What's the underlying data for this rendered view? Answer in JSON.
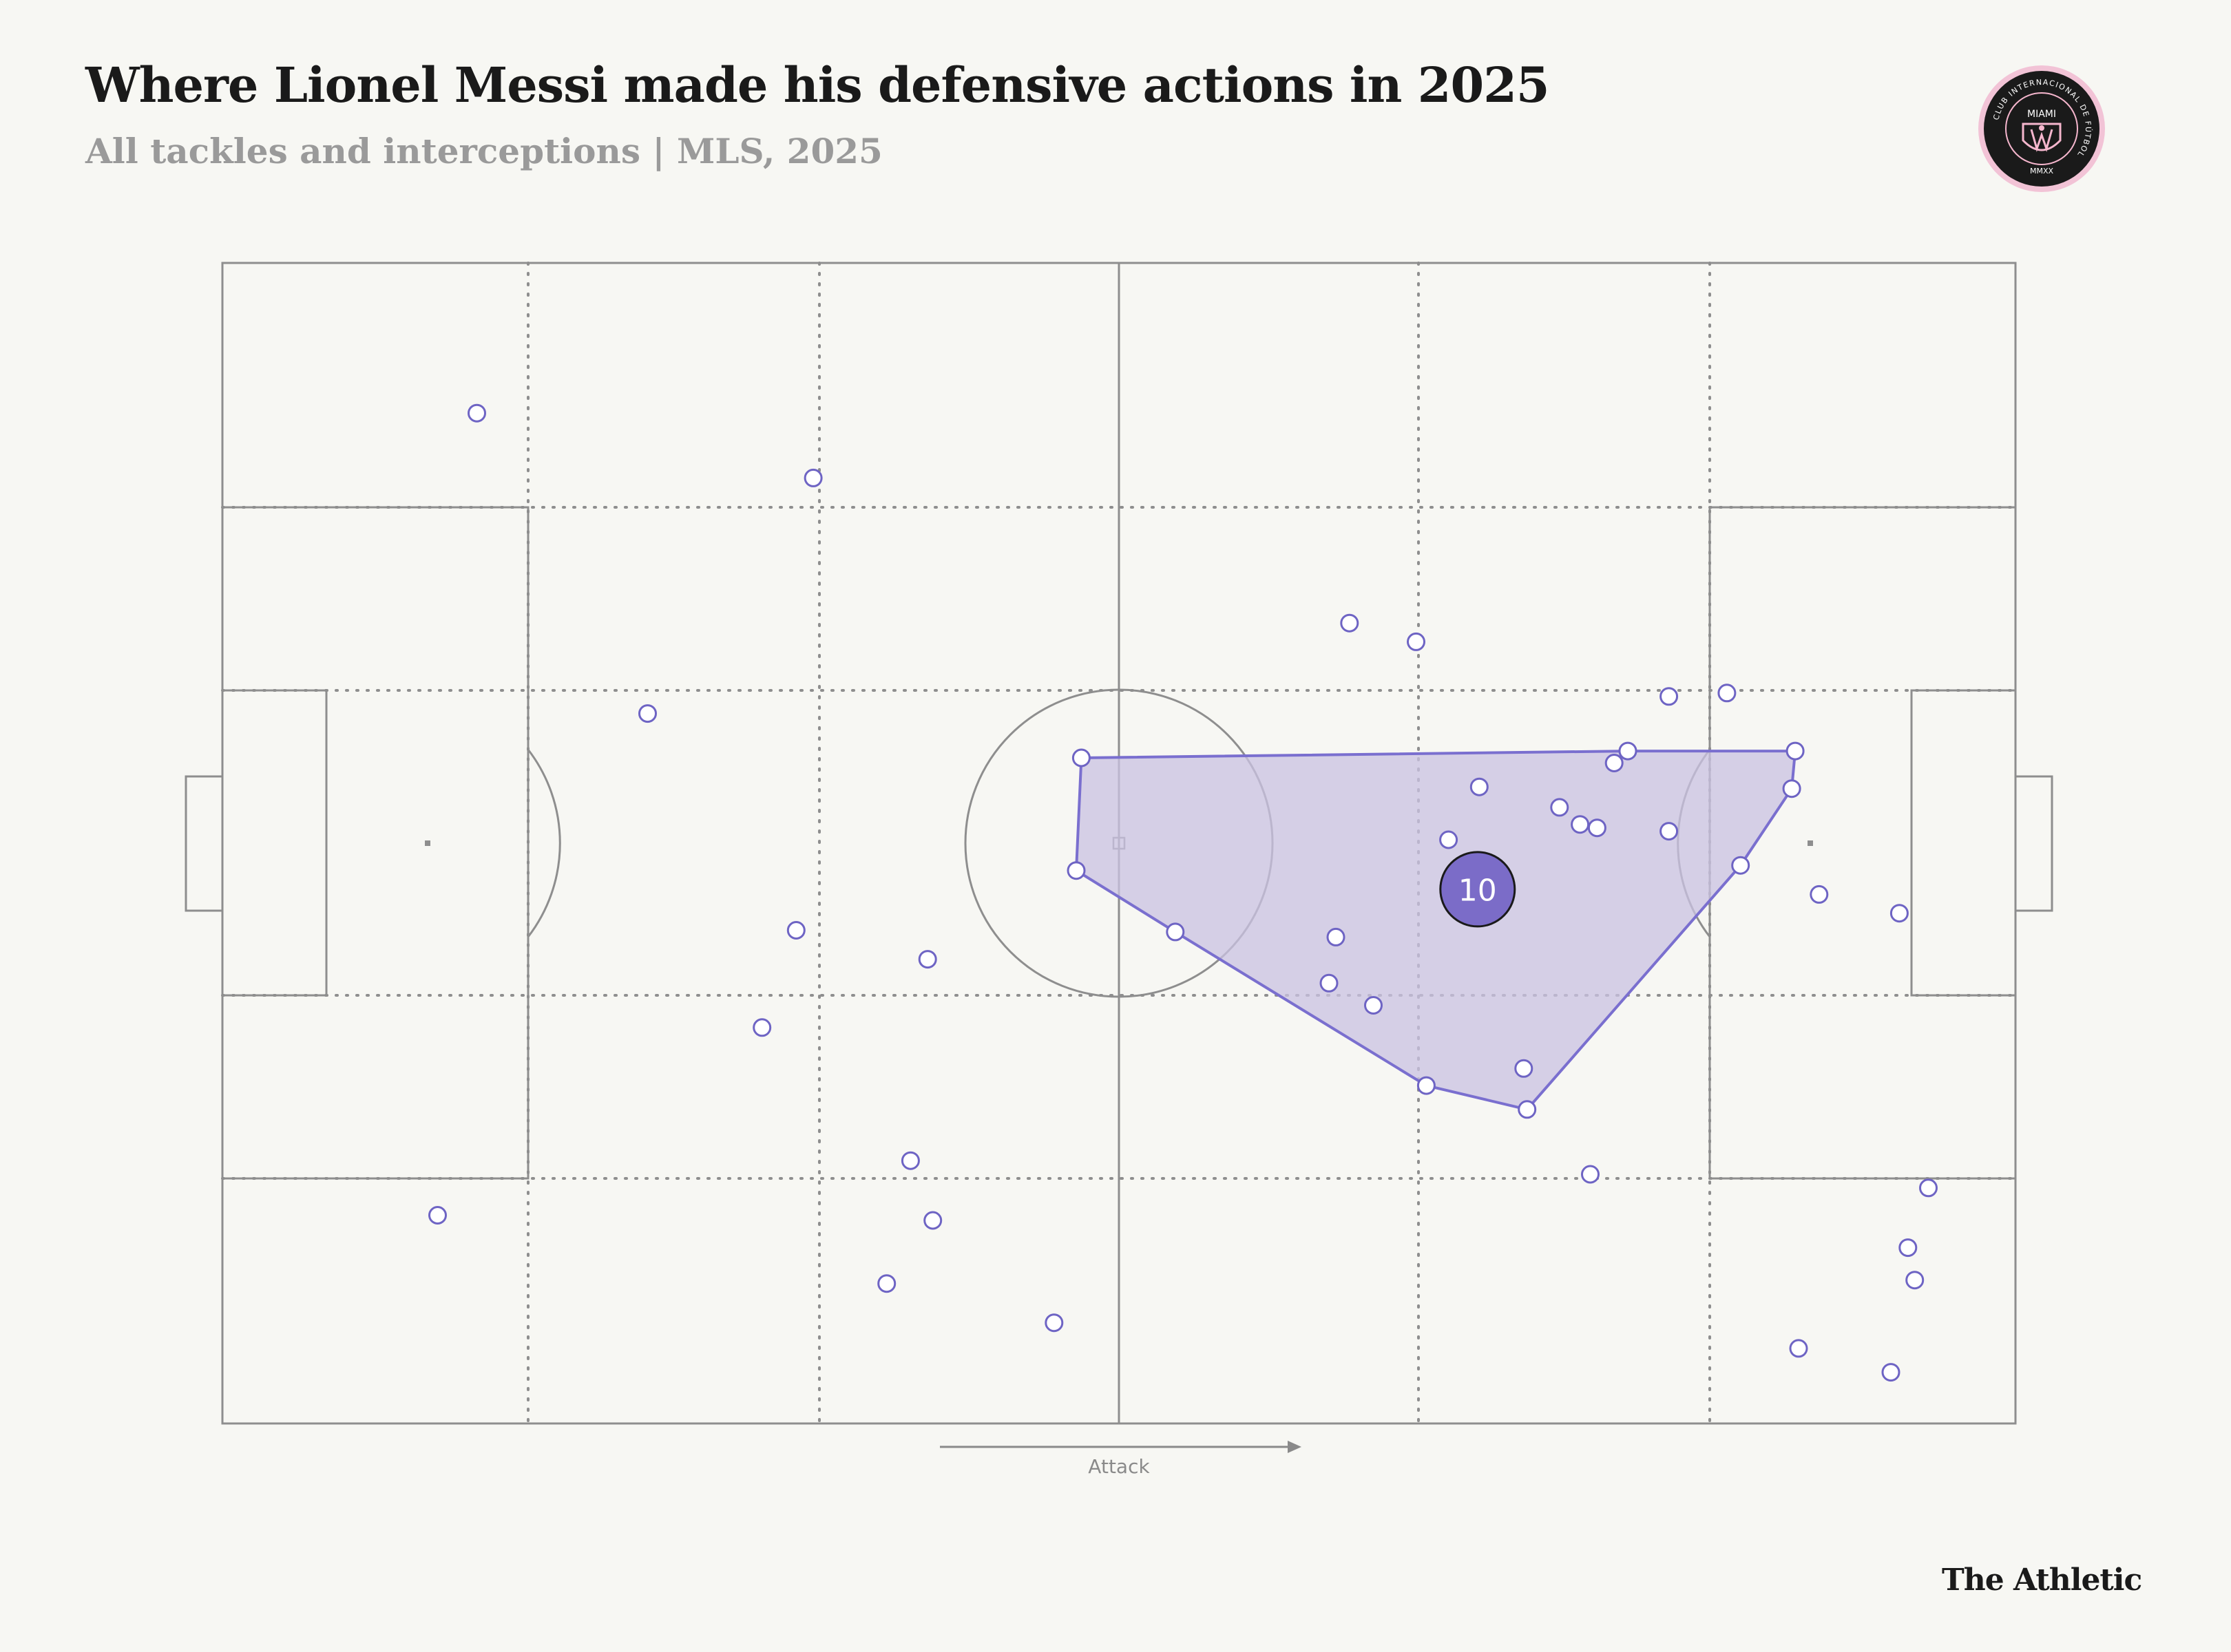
{
  "header": {
    "title": "Where Lionel Messi made his defensive actions in 2025",
    "subtitle": "All tackles and interceptions | MLS, 2025"
  },
  "crest": {
    "name": "MIAMI",
    "ring_text": "CLUB INTERNACIONAL DE FÚTBOL",
    "year": "MMXX",
    "colors": {
      "outer": "#e8b4c8",
      "inner": "#1a1a1a",
      "accent": "#f5b6cd"
    }
  },
  "footer": {
    "credit": "The Athletic"
  },
  "colors": {
    "background": "#f7f7f3",
    "pitch_lines": "#8e8e8e",
    "point_stroke": "#6e64c4",
    "hull_fill": "#c9c2e2",
    "hull_stroke": "#7a6fcf",
    "badge_fill": "#7b6cc8"
  },
  "chart_data": {
    "type": "scatter",
    "title": "Where Lionel Messi made his defensive actions in 2025",
    "subtitle": "All tackles and interceptions | MLS, 2025",
    "pitch": {
      "length": 105,
      "width": 68,
      "grid_zones": "6x5",
      "attack_direction": "left-to-right"
    },
    "direction_label": "Attack",
    "player_marker": {
      "label": "10",
      "x": 73.5,
      "y": 36.7
    },
    "points": [
      [
        14.9,
        8.8
      ],
      [
        34.6,
        12.6
      ],
      [
        66.0,
        21.1
      ],
      [
        69.9,
        22.2
      ],
      [
        24.9,
        26.4
      ],
      [
        84.7,
        25.4
      ],
      [
        88.1,
        25.2
      ],
      [
        50.3,
        29.0
      ],
      [
        82.3,
        28.6
      ],
      [
        92.1,
        28.6
      ],
      [
        81.5,
        29.3
      ],
      [
        73.6,
        30.7
      ],
      [
        78.3,
        31.9
      ],
      [
        79.5,
        32.9
      ],
      [
        80.5,
        33.1
      ],
      [
        91.9,
        30.8
      ],
      [
        84.7,
        33.3
      ],
      [
        71.8,
        33.8
      ],
      [
        50.0,
        35.6
      ],
      [
        88.9,
        35.3
      ],
      [
        93.5,
        37.0
      ],
      [
        98.2,
        38.1
      ],
      [
        33.6,
        39.1
      ],
      [
        55.8,
        39.2
      ],
      [
        65.2,
        39.5
      ],
      [
        41.3,
        40.8
      ],
      [
        64.8,
        42.2
      ],
      [
        67.4,
        43.5
      ],
      [
        31.6,
        44.8
      ],
      [
        76.2,
        47.2
      ],
      [
        70.5,
        48.2
      ],
      [
        76.4,
        49.6
      ],
      [
        40.3,
        52.6
      ],
      [
        80.1,
        53.4
      ],
      [
        99.9,
        54.2
      ],
      [
        12.6,
        55.8
      ],
      [
        41.6,
        56.1
      ],
      [
        98.7,
        57.7
      ],
      [
        99.1,
        59.6
      ],
      [
        38.9,
        59.8
      ],
      [
        48.7,
        62.1
      ],
      [
        92.3,
        63.6
      ],
      [
        97.7,
        65.0
      ]
    ],
    "hull": [
      [
        50.3,
        29.0
      ],
      [
        82.3,
        28.6
      ],
      [
        92.1,
        28.6
      ],
      [
        91.9,
        30.8
      ],
      [
        88.9,
        35.3
      ],
      [
        76.4,
        49.6
      ],
      [
        70.5,
        48.2
      ],
      [
        55.8,
        39.2
      ],
      [
        50.0,
        35.6
      ]
    ],
    "xlim": [
      0,
      105
    ],
    "ylim": [
      0,
      68
    ],
    "grid": true
  }
}
